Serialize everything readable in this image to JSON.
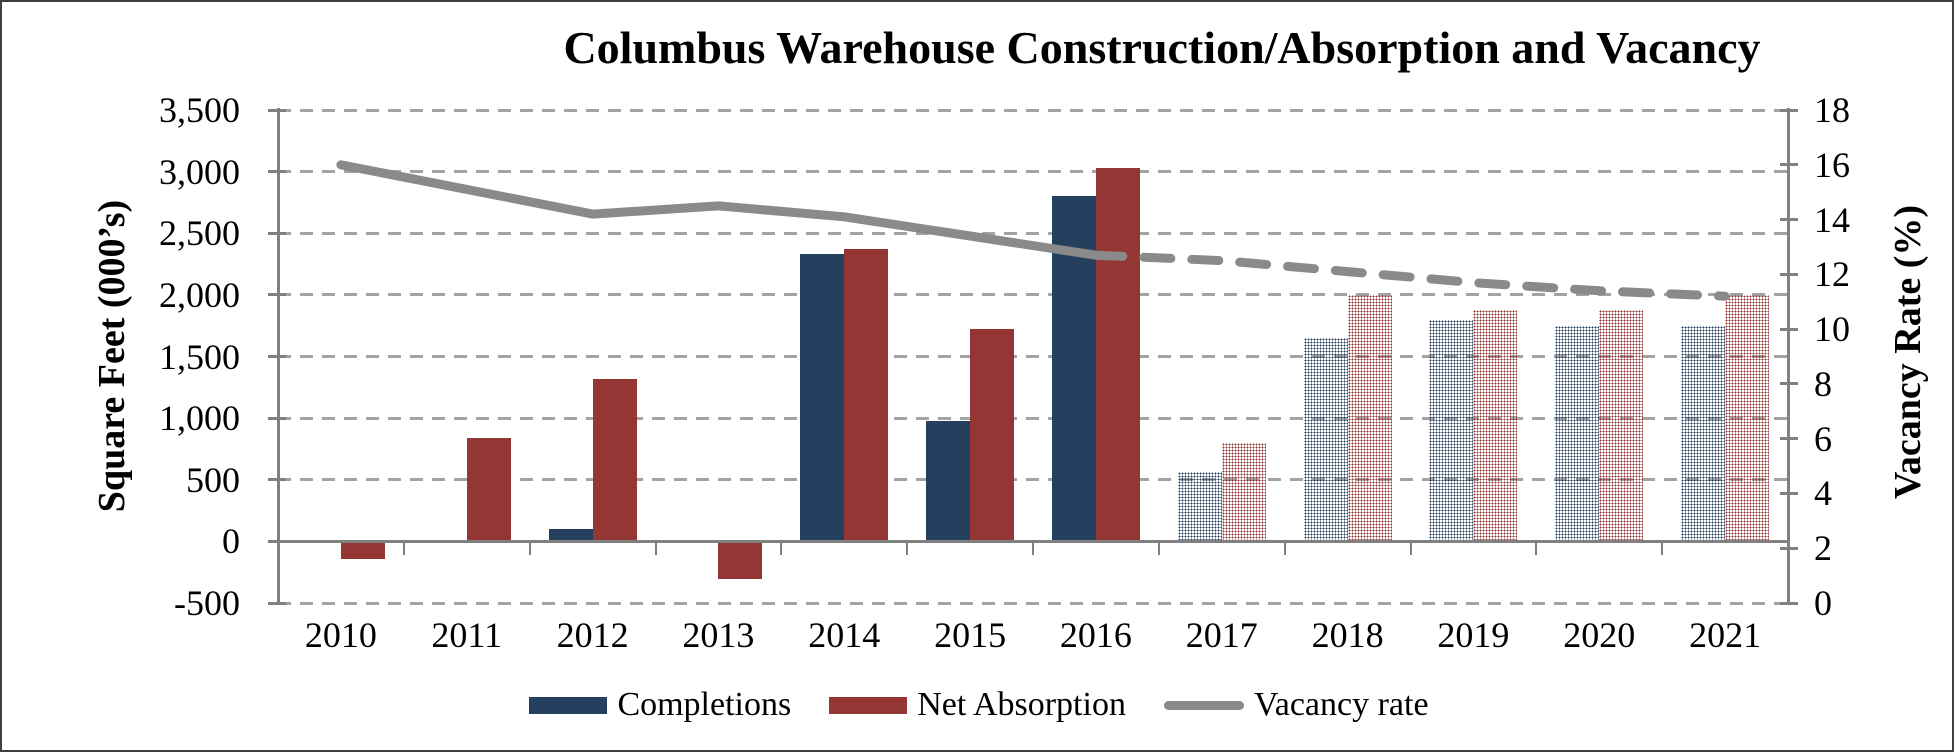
{
  "title": "Columbus Warehouse Construction/Absorption and Vacancy",
  "left_axis": {
    "title": "Square Feet (000’s)",
    "min": -500,
    "max": 3500,
    "step": 500,
    "tick_labels": [
      "-500",
      "0",
      "500",
      "1,000",
      "1,500",
      "2,000",
      "2,500",
      "3,000",
      "3,500"
    ]
  },
  "right_axis": {
    "title": "Vacancy Rate (%)",
    "min": 0,
    "max": 18,
    "step": 2,
    "tick_labels": [
      "0",
      "2",
      "4",
      "6",
      "8",
      "10",
      "12",
      "14",
      "16",
      "18"
    ]
  },
  "chart_data": {
    "type": "bar",
    "subtype": "combo bar+line, dual axis",
    "categories": [
      "2010",
      "2011",
      "2012",
      "2013",
      "2014",
      "2015",
      "2016",
      "2017",
      "2018",
      "2019",
      "2020",
      "2021"
    ],
    "series": [
      {
        "name": "Completions",
        "type": "bar",
        "axis": "left",
        "color": "#24405e",
        "values": [
          0,
          0,
          100,
          0,
          2330,
          980,
          2800,
          560,
          1650,
          1800,
          1750,
          1750
        ],
        "forecast_start_index": 7,
        "forecast_style": "dotted-pattern"
      },
      {
        "name": "Net Absorption",
        "type": "bar",
        "axis": "left",
        "color": "#943634",
        "values": [
          -130,
          840,
          1320,
          -290,
          2370,
          1725,
          3030,
          800,
          2000,
          1880,
          1880,
          2000
        ],
        "forecast_start_index": 7,
        "forecast_style": "dotted-pattern"
      },
      {
        "name": "Vacancy rate",
        "type": "line",
        "axis": "right",
        "color": "#8a8a8a",
        "values": [
          16.0,
          15.1,
          14.2,
          14.5,
          14.1,
          13.4,
          12.7,
          12.5,
          12.1,
          11.7,
          11.4,
          11.2
        ],
        "forecast_start_index": 7,
        "forecast_style": "dashed"
      }
    ],
    "legend_position": "bottom",
    "grid": "horizontal dashed",
    "ylim_left": [
      -500,
      3500
    ],
    "ylim_right": [
      0,
      18
    ]
  },
  "colors": {
    "gridline": "#a3a3a3",
    "axis_line": "#808080",
    "text": "#000000",
    "background": "#ffffff",
    "frame_border": "#3f3f3f"
  }
}
